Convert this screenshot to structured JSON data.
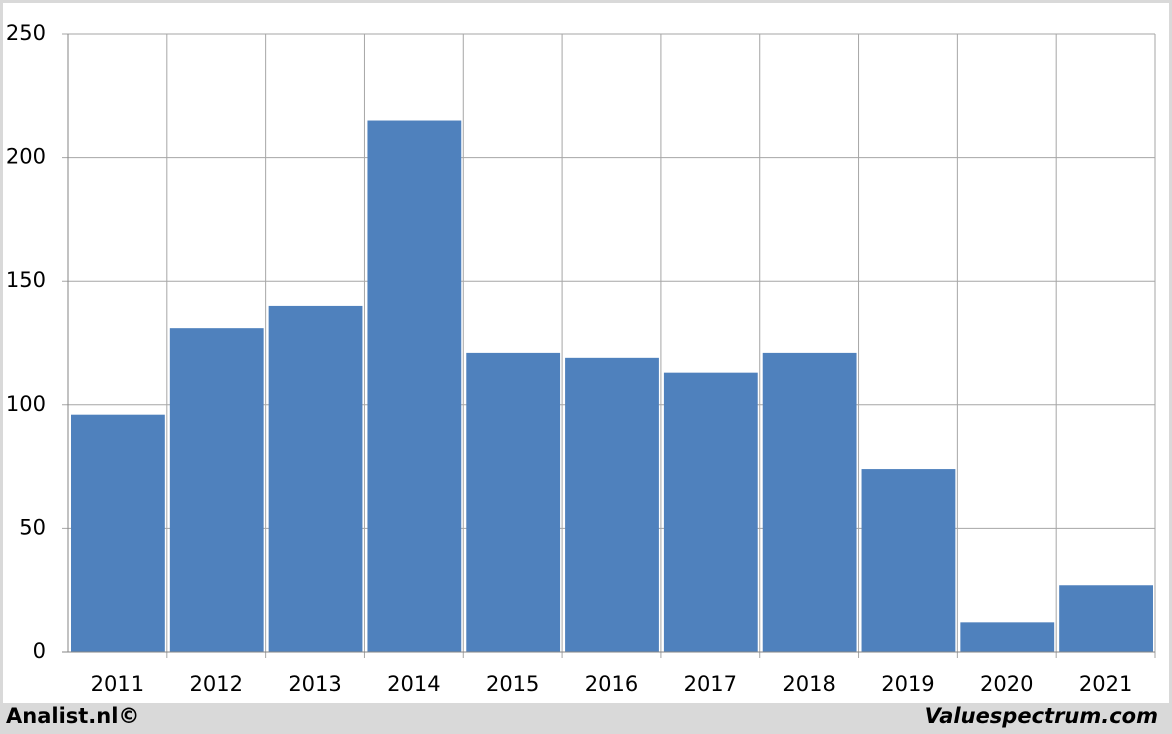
{
  "chart_data": {
    "type": "bar",
    "categories": [
      "2011",
      "2012",
      "2013",
      "2014",
      "2015",
      "2016",
      "2017",
      "2018",
      "2019",
      "2020",
      "2021"
    ],
    "values": [
      96,
      131,
      140,
      215,
      121,
      119,
      113,
      121,
      74,
      12,
      27
    ],
    "color": "#4f81bd",
    "ylim": [
      0,
      250
    ],
    "yticks": [
      0,
      50,
      100,
      150,
      200,
      250
    ],
    "grid": true
  },
  "footer": {
    "left": "Analist.nl©",
    "right": "Valuespectrum.com"
  }
}
